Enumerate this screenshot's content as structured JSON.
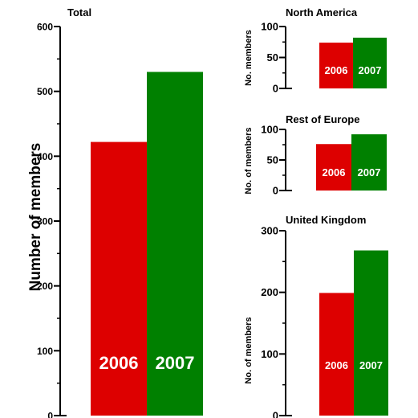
{
  "colors": {
    "series_2006": "#dd0000",
    "series_2007": "#008000",
    "bar_label": "#ffffff",
    "axis": "#000000"
  },
  "shared_ylabel": "Number of members",
  "chart_data": [
    {
      "type": "bar",
      "key": "total",
      "title": "Total",
      "ylabel": "",
      "ylim": [
        0,
        600
      ],
      "major_ticks": [
        0,
        100,
        200,
        300,
        400,
        500,
        600
      ],
      "minor_step": 50,
      "categories": [
        "2006",
        "2007"
      ],
      "values": [
        422,
        530
      ],
      "data_labels": [
        "2006",
        "2007"
      ]
    },
    {
      "type": "bar",
      "key": "north_america",
      "title": "North America",
      "ylabel": "No. members",
      "ylim": [
        0,
        100
      ],
      "major_ticks": [
        0,
        50,
        100
      ],
      "minor_step": 25,
      "categories": [
        "2006",
        "2007"
      ],
      "values": [
        74,
        82
      ],
      "data_labels": [
        "2006",
        "2007"
      ]
    },
    {
      "type": "bar",
      "key": "rest_of_europe",
      "title": "Rest of Europe",
      "ylabel": "No. of members",
      "ylim": [
        0,
        100
      ],
      "major_ticks": [
        0,
        50,
        100
      ],
      "minor_step": 25,
      "categories": [
        "2006",
        "2007"
      ],
      "values": [
        76,
        92
      ],
      "data_labels": [
        "2006",
        "2007"
      ]
    },
    {
      "type": "bar",
      "key": "united_kingdom",
      "title": "United Kingdom",
      "ylabel": "No. of members",
      "ylim": [
        0,
        300
      ],
      "major_ticks": [
        0,
        100,
        200,
        300
      ],
      "minor_step": 50,
      "categories": [
        "2006",
        "2007"
      ],
      "values": [
        199,
        268
      ],
      "data_labels": [
        "2006",
        "2007"
      ]
    }
  ]
}
